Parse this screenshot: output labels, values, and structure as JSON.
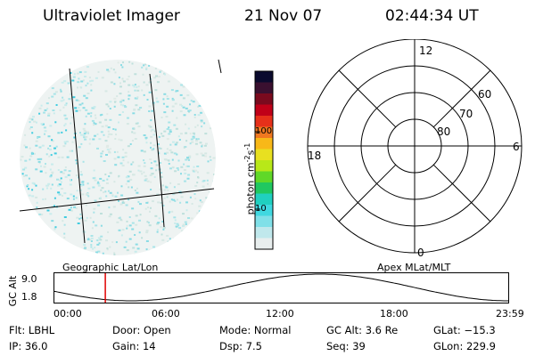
{
  "header": {
    "title": "Ultraviolet Imager",
    "date": "21 Nov 07",
    "time": "02:44:34 UT"
  },
  "colorbar": {
    "unit_label": "photon cm",
    "unit_sup1": "-2",
    "unit_mid": "s",
    "unit_sup2": "-1",
    "ticks": [
      "100",
      "10"
    ],
    "colors": [
      "#0a0a2e",
      "#3a1030",
      "#7a0a1e",
      "#c00018",
      "#e6301a",
      "#f07820",
      "#f8b818",
      "#e8e020",
      "#b8e818",
      "#60d828",
      "#20c860",
      "#20d0c0",
      "#40d8e0",
      "#80e0e8",
      "#c0e8ec",
      "#e8eeee"
    ]
  },
  "geo_panel": {
    "label": "Geographic Lat/Lon"
  },
  "polar_panel": {
    "label": "Apex MLat/MLT",
    "hour_labels": {
      "top": "12",
      "left": "18",
      "right": "6",
      "bottom": "0"
    },
    "lat_labels": [
      "60",
      "70",
      "80"
    ]
  },
  "timeline": {
    "ylabel": "GC Alt",
    "ytick_top": "9.0",
    "ytick_bottom": "1.8",
    "xticks": [
      "00:00",
      "06:00",
      "12:00",
      "18:00",
      "23:59"
    ],
    "current_time_fraction": 0.114
  },
  "info": {
    "row1": [
      {
        "label": "Flt:",
        "value": "LBHL"
      },
      {
        "label": "Door:",
        "value": "Open"
      },
      {
        "label": "Mode:",
        "value": "Normal"
      },
      {
        "label": "GC Alt:",
        "value": "3.6 Re"
      },
      {
        "label": "GLat:",
        "value": "−15.3"
      }
    ],
    "row2": [
      {
        "label": "IP:",
        "value": "36.0"
      },
      {
        "label": "Gain:",
        "value": "14"
      },
      {
        "label": "Dsp:",
        "value": "7.5"
      },
      {
        "label": "Seq:",
        "value": "39"
      },
      {
        "label": "GLon:",
        "value": "229.9"
      }
    ]
  }
}
